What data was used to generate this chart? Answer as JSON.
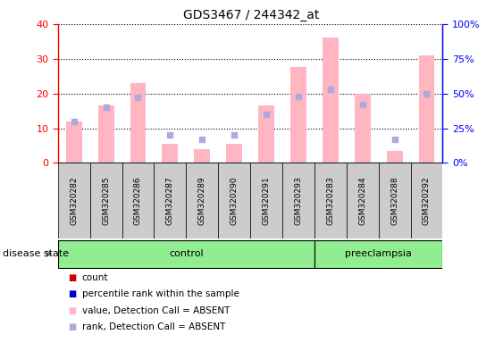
{
  "title": "GDS3467 / 244342_at",
  "samples": [
    "GSM320282",
    "GSM320285",
    "GSM320286",
    "GSM320287",
    "GSM320289",
    "GSM320290",
    "GSM320291",
    "GSM320293",
    "GSM320283",
    "GSM320284",
    "GSM320288",
    "GSM320292"
  ],
  "groups": [
    "control",
    "control",
    "control",
    "control",
    "control",
    "control",
    "control",
    "control",
    "preeclampsia",
    "preeclampsia",
    "preeclampsia",
    "preeclampsia"
  ],
  "values_absent": [
    12,
    16.5,
    23,
    5.5,
    4,
    5.5,
    16.5,
    27.5,
    36,
    20,
    3.5,
    31
  ],
  "rank_absent_pct": [
    30,
    40,
    47,
    20,
    17,
    20,
    35,
    48,
    53,
    42,
    17,
    50
  ],
  "ylim_left": [
    0,
    40
  ],
  "ylim_right": [
    0,
    100
  ],
  "yticks_left": [
    0,
    10,
    20,
    30,
    40
  ],
  "yticks_right": [
    0,
    25,
    50,
    75,
    100
  ],
  "ytick_labels_right": [
    "0%",
    "25%",
    "50%",
    "75%",
    "100%"
  ],
  "bar_color_absent": "#FFB6C1",
  "rank_color_absent": "#AAAADD",
  "control_color": "#90EE90",
  "preeclampsia_color": "#90EE90",
  "sample_box_color": "#CCCCCC",
  "legend_items": [
    {
      "label": "count",
      "color": "#CC0000"
    },
    {
      "label": "percentile rank within the sample",
      "color": "#0000CC"
    },
    {
      "label": "value, Detection Call = ABSENT",
      "color": "#FFB6C1"
    },
    {
      "label": "rank, Detection Call = ABSENT",
      "color": "#AAAADD"
    }
  ],
  "disease_state_label": "disease state",
  "figsize": [
    5.63,
    3.84
  ],
  "dpi": 100
}
